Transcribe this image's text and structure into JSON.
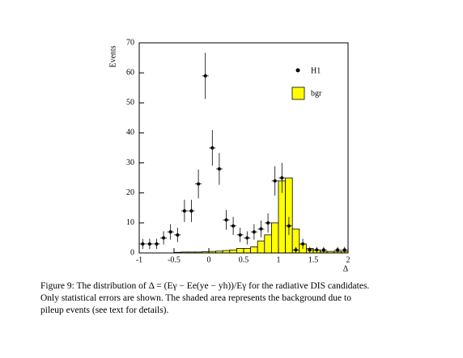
{
  "chart_data": [
    {
      "type": "histogram",
      "name": "bgr",
      "color": "#ffff00",
      "xlabel": "Δ",
      "ylabel": "Events",
      "xlim": [
        -1,
        2
      ],
      "ylim": [
        0,
        70
      ],
      "xticks": [
        -1,
        -0.5,
        0,
        0.5,
        1,
        1.5,
        2
      ],
      "yticks": [
        0,
        10,
        20,
        30,
        40,
        50,
        60,
        70
      ],
      "bins": [
        -1,
        -0.9,
        -0.8,
        -0.7,
        -0.6,
        -0.5,
        -0.4,
        -0.3,
        -0.2,
        -0.1,
        0,
        0.1,
        0.2,
        0.3,
        0.4,
        0.5,
        0.6,
        0.7,
        0.8,
        0.9,
        1,
        1.1,
        1.2,
        1.3,
        1.4,
        1.5,
        1.6,
        1.7,
        1.8,
        1.9,
        2
      ],
      "values": [
        0,
        0,
        0,
        0,
        0,
        0.2,
        0.3,
        0.3,
        0.3,
        0.4,
        0.5,
        0.6,
        0.8,
        1,
        1.5,
        1.5,
        2,
        4,
        6,
        10,
        24,
        25,
        8,
        3,
        1.5,
        1,
        0.5,
        0.5,
        0.5,
        0.5
      ],
      "legend": "upper right"
    },
    {
      "type": "errorbar",
      "name": "H1",
      "color": "#000000",
      "x": [
        -0.95,
        -0.85,
        -0.75,
        -0.65,
        -0.55,
        -0.45,
        -0.35,
        -0.25,
        -0.15,
        -0.05,
        0.05,
        0.15,
        0.25,
        0.35,
        0.45,
        0.55,
        0.65,
        0.75,
        0.85,
        0.95,
        1.05,
        1.15,
        1.25,
        1.35,
        1.45,
        1.55,
        1.65,
        1.85,
        1.95
      ],
      "values": [
        3,
        3,
        3,
        5,
        7,
        6,
        14,
        14,
        23,
        59,
        35,
        28,
        11,
        9,
        6,
        5,
        7,
        8,
        10,
        24,
        25,
        9,
        1,
        3,
        1,
        1,
        1,
        1,
        1
      ],
      "errors": [
        1.7,
        1.7,
        1.7,
        2.2,
        2.6,
        2.4,
        3.7,
        3.7,
        4.8,
        7.7,
        5.9,
        5.3,
        3.3,
        3,
        2.4,
        2.2,
        2.6,
        2.8,
        3.2,
        4.9,
        5,
        3,
        1,
        1.7,
        1,
        1,
        1,
        1,
        1
      ]
    }
  ],
  "caption": [
    "Figure 9: The distribution of Δ = (Eγ − Ee(ye − yh))/Eγ for the radiative DIS candidates.",
    "Only statistical errors are shown.  The shaded area represents the background due to",
    "pileup events (see text for details)."
  ]
}
